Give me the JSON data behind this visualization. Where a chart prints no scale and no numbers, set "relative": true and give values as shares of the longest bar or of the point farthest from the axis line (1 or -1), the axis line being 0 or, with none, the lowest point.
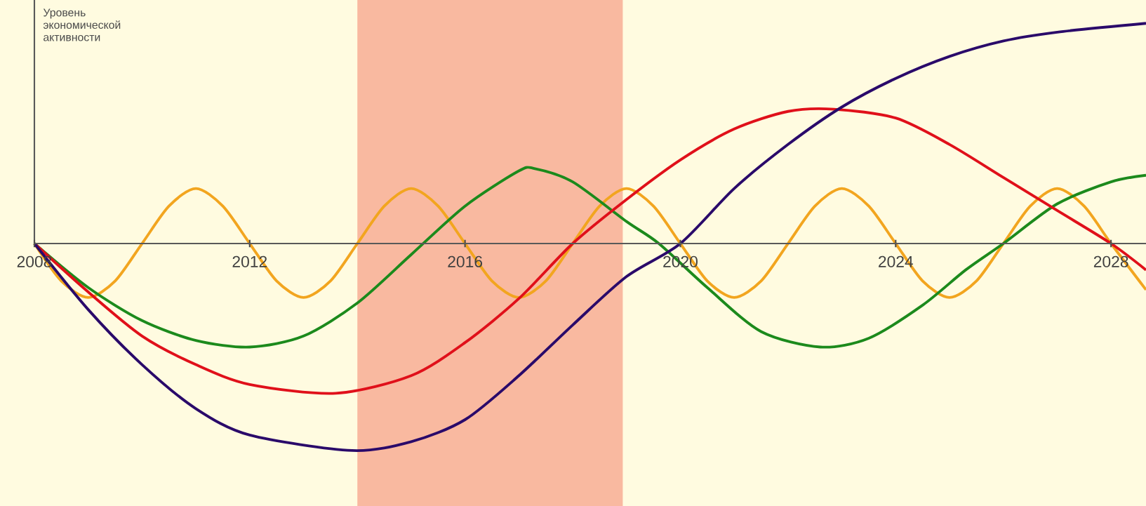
{
  "chart_data": {
    "type": "line",
    "relative": true,
    "ylabel": "Уровень экономической активности",
    "xlim": [
      2008,
      2028.65
    ],
    "xticks": [
      2008,
      2012,
      2016,
      2020,
      2024,
      2028
    ],
    "grid": false,
    "marker": "none",
    "line_style": "solid",
    "bands": [
      {
        "axis": "x",
        "from": 2014,
        "to": 2018.93,
        "color": "#f9b9a0"
      }
    ],
    "series": [
      {
        "color": "#f2a51f",
        "x": [
          2008,
          2008.5,
          2009,
          2009.5,
          2010,
          2010.5,
          2011,
          2011.5,
          2012,
          2012.5,
          2013,
          2013.5,
          2014,
          2014.5,
          2015,
          2015.5,
          2016,
          2016.5,
          2017,
          2017.5,
          2018,
          2018.5,
          2019,
          2019.5,
          2020,
          2020.5,
          2021,
          2021.5,
          2022,
          2022.5,
          2023,
          2023.5,
          2024,
          2024.5,
          2025,
          2025.5,
          2026,
          2026.5,
          2027,
          2027.5,
          2028,
          2028.65
        ],
        "values": [
          0,
          -0.17,
          -0.245,
          -0.17,
          0,
          0.17,
          0.25,
          0.17,
          0,
          -0.17,
          -0.245,
          -0.17,
          0,
          0.17,
          0.25,
          0.17,
          0,
          -0.17,
          -0.245,
          -0.17,
          0,
          0.17,
          0.25,
          0.17,
          0,
          -0.17,
          -0.245,
          -0.17,
          0,
          0.17,
          0.25,
          0.17,
          0,
          -0.17,
          -0.245,
          -0.17,
          0,
          0.17,
          0.25,
          0.17,
          0,
          -0.21
        ]
      },
      {
        "color": "#1c8a1c",
        "x": [
          2008,
          2009,
          2010,
          2011,
          2012,
          2013,
          2014,
          2015,
          2016,
          2017,
          2017.3,
          2018,
          2019,
          2019.6,
          2020.5,
          2021.5,
          2022.6,
          2023.5,
          2024.5,
          2025.3,
          2026,
          2027,
          2028,
          2028.65
        ],
        "values": [
          0,
          -0.2,
          -0.35,
          -0.44,
          -0.47,
          -0.42,
          -0.27,
          -0.05,
          0.17,
          0.33,
          0.34,
          0.28,
          0.1,
          0,
          -0.2,
          -0.4,
          -0.47,
          -0.43,
          -0.28,
          -0.12,
          0,
          0.18,
          0.28,
          0.31
        ]
      },
      {
        "color": "#e0101a",
        "x": [
          2008,
          2009,
          2010,
          2011,
          2012,
          2013.6,
          2015,
          2016,
          2017,
          2018,
          2019,
          2020,
          2021,
          2022,
          2022.85,
          2024,
          2025,
          2026,
          2027,
          2028,
          2028.65
        ],
        "values": [
          0,
          -0.22,
          -0.42,
          -0.55,
          -0.64,
          -0.68,
          -0.6,
          -0.45,
          -0.25,
          0,
          0.2,
          0.38,
          0.52,
          0.6,
          0.61,
          0.57,
          0.45,
          0.3,
          0.15,
          0,
          -0.12
        ]
      },
      {
        "color": "#2a0a6a",
        "x": [
          2008,
          2009,
          2010,
          2011,
          2012,
          2013.9,
          2015,
          2016,
          2017,
          2018,
          2019,
          2020,
          2021,
          2022,
          2023,
          2024,
          2025,
          2026,
          2027,
          2028.65
        ],
        "values": [
          0,
          -0.3,
          -0.55,
          -0.75,
          -0.87,
          -0.94,
          -0.9,
          -0.8,
          -0.6,
          -0.37,
          -0.15,
          0,
          0.25,
          0.45,
          0.62,
          0.75,
          0.85,
          0.92,
          0.96,
          1.0
        ]
      }
    ]
  }
}
